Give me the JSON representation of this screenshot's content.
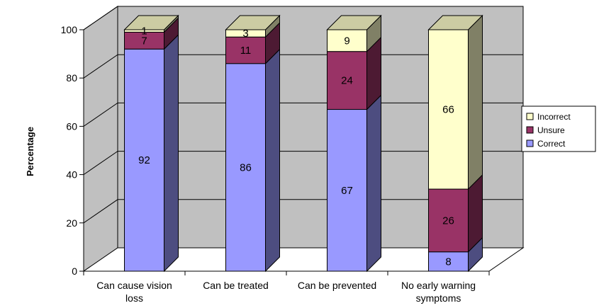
{
  "chart_data": {
    "type": "bar",
    "stacked": true,
    "three_d": true,
    "ylabel": "Percentage",
    "xlabel": "",
    "ylim": [
      0,
      100
    ],
    "yticks": [
      0,
      20,
      40,
      60,
      80,
      100
    ],
    "grid": true,
    "legend_position": "right",
    "categories": [
      [
        "Can cause vision",
        "loss"
      ],
      [
        "Can be treated"
      ],
      [
        "Can be prevented"
      ],
      [
        "No early warning",
        "symptoms"
      ]
    ],
    "series": [
      {
        "name": "Correct",
        "color": "#9999FF",
        "values": [
          92,
          86,
          67,
          8
        ]
      },
      {
        "name": "Unsure",
        "color": "#993366",
        "values": [
          7,
          11,
          24,
          26
        ]
      },
      {
        "name": "Incorrect",
        "color": "#FFFFCC",
        "values": [
          1,
          3,
          9,
          66
        ]
      }
    ],
    "legend_order": [
      "Incorrect",
      "Unsure",
      "Correct"
    ]
  }
}
